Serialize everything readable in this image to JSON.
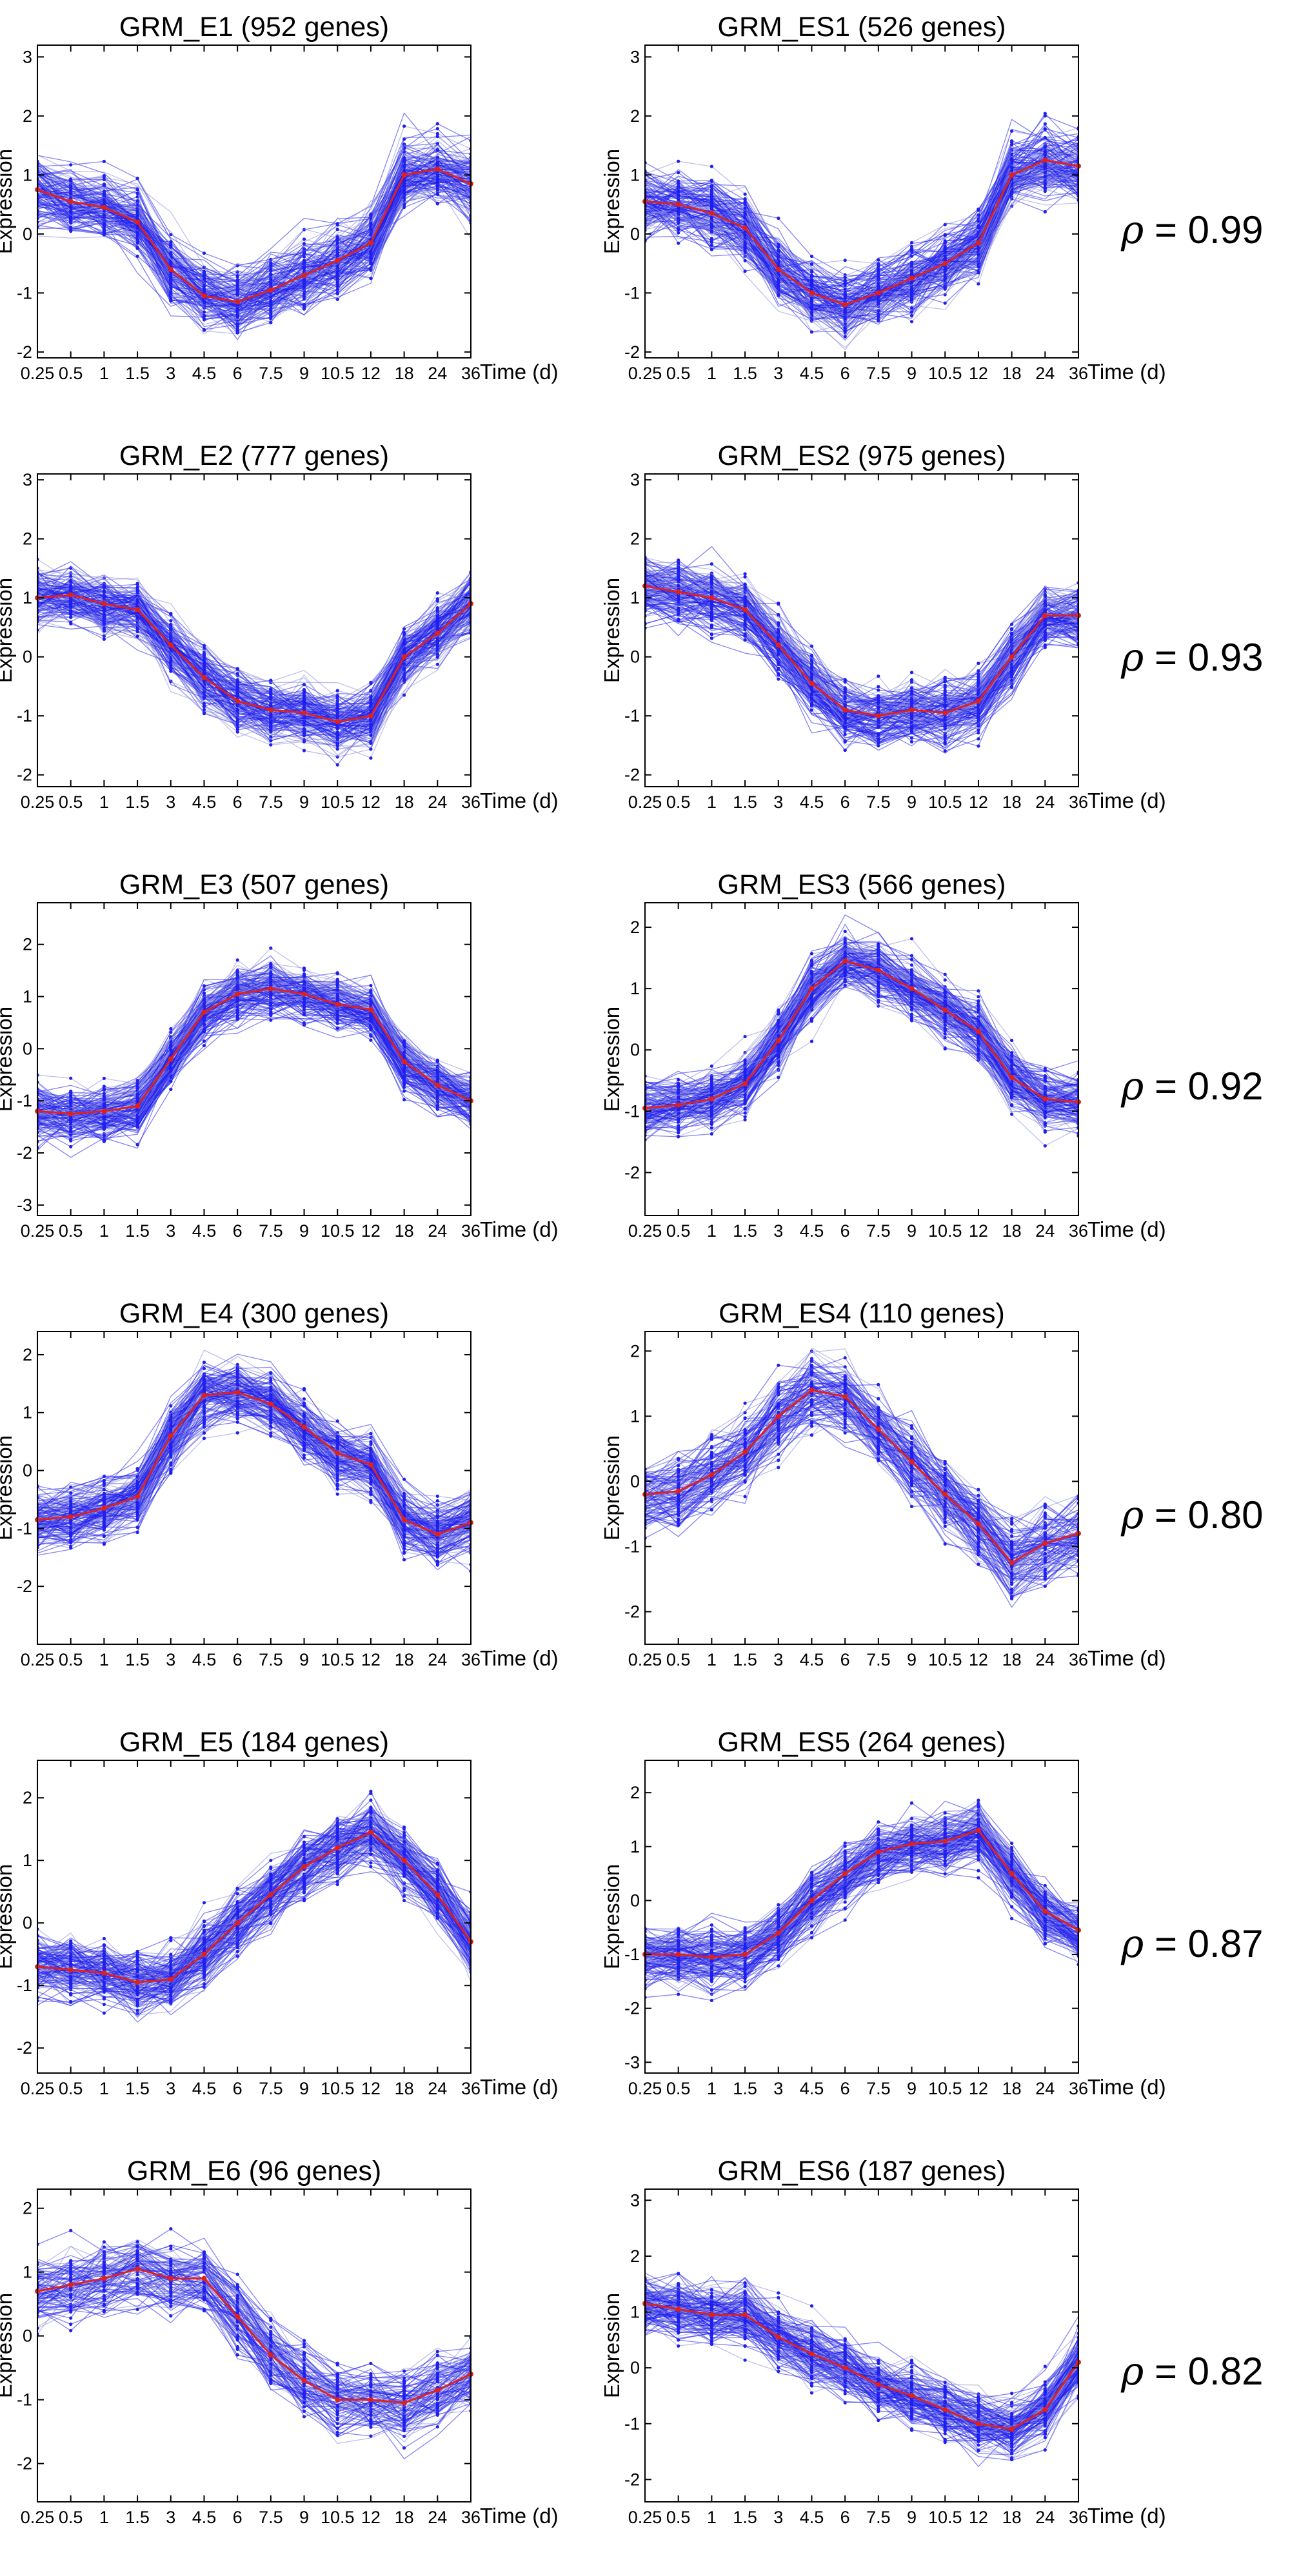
{
  "figure": {
    "rows": [
      {
        "rho_symbol": "ρ",
        "rho_value": "= 0.99"
      },
      {
        "rho_symbol": "ρ",
        "rho_value": "= 0.93"
      },
      {
        "rho_symbol": "ρ",
        "rho_value": "= 0.92"
      },
      {
        "rho_symbol": "ρ",
        "rho_value": "= 0.80"
      },
      {
        "rho_symbol": "ρ",
        "rho_value": "= 0.87"
      },
      {
        "rho_symbol": "ρ",
        "rho_value": "= 0.82"
      }
    ]
  },
  "colors": {
    "gene_lines": "#1f1ff0",
    "gene_lines_faint": "#8d8ddc",
    "mean_line": "#e0201c"
  },
  "chart_data": [
    {
      "type": "line",
      "title": "GRM_E1 (952 genes)",
      "n_genes": 952,
      "ylabel": "Expression",
      "xlabel": "Time (d)",
      "x": [
        "0.25",
        "0.5",
        "1",
        "1.5",
        "3",
        "4.5",
        "6",
        "7.5",
        "9",
        "10.5",
        "12",
        "18",
        "24",
        "36"
      ],
      "ylim": [
        -2.1,
        3.2
      ],
      "yticks": [
        -2,
        -1,
        0,
        1,
        2,
        3
      ],
      "spread": 0.5,
      "series": [
        {
          "values": [
            0.75,
            0.55,
            0.45,
            0.2,
            -0.6,
            -1.05,
            -1.15,
            -0.95,
            -0.7,
            -0.45,
            -0.15,
            1.0,
            1.1,
            0.85
          ]
        }
      ]
    },
    {
      "type": "line",
      "title": "GRM_ES1 (526 genes)",
      "n_genes": 526,
      "ylabel": "Expression",
      "xlabel": "Time (d)",
      "x": [
        "0.25",
        "0.5",
        "1",
        "1.5",
        "3",
        "4.5",
        "6",
        "7.5",
        "9",
        "10.5",
        "12",
        "18",
        "24",
        "36"
      ],
      "ylim": [
        -2.1,
        3.2
      ],
      "yticks": [
        -2,
        -1,
        0,
        1,
        2,
        3
      ],
      "spread": 0.5,
      "series": [
        {
          "values": [
            0.55,
            0.5,
            0.35,
            0.1,
            -0.6,
            -1.0,
            -1.2,
            -1.0,
            -0.75,
            -0.5,
            -0.15,
            1.0,
            1.25,
            1.15
          ]
        }
      ]
    },
    {
      "type": "line",
      "title": "GRM_E2 (777 genes)",
      "n_genes": 777,
      "ylabel": "Expression",
      "xlabel": "Time (d)",
      "x": [
        "0.25",
        "0.5",
        "1",
        "1.5",
        "3",
        "4.5",
        "6",
        "7.5",
        "9",
        "10.5",
        "12",
        "18",
        "24",
        "36"
      ],
      "ylim": [
        -2.2,
        3.1
      ],
      "yticks": [
        -2,
        -1,
        0,
        1,
        2,
        3
      ],
      "spread": 0.45,
      "series": [
        {
          "values": [
            1.0,
            1.05,
            0.9,
            0.8,
            0.2,
            -0.35,
            -0.75,
            -0.9,
            -0.95,
            -1.1,
            -1.0,
            0.0,
            0.4,
            0.9
          ]
        }
      ]
    },
    {
      "type": "line",
      "title": "GRM_ES2 (975 genes)",
      "n_genes": 975,
      "ylabel": "Expression",
      "xlabel": "Time (d)",
      "x": [
        "0.25",
        "0.5",
        "1",
        "1.5",
        "3",
        "4.5",
        "6",
        "7.5",
        "9",
        "10.5",
        "12",
        "18",
        "24",
        "36"
      ],
      "ylim": [
        -2.2,
        3.1
      ],
      "yticks": [
        -2,
        -1,
        0,
        1,
        2,
        3
      ],
      "spread": 0.45,
      "series": [
        {
          "values": [
            1.2,
            1.1,
            1.0,
            0.8,
            0.2,
            -0.45,
            -0.9,
            -1.0,
            -0.9,
            -0.95,
            -0.75,
            0.0,
            0.7,
            0.7
          ]
        }
      ]
    },
    {
      "type": "line",
      "title": "GRM_E3 (507 genes)",
      "n_genes": 507,
      "ylabel": "Expression",
      "xlabel": "Time (d)",
      "x": [
        "0.25",
        "0.5",
        "1",
        "1.5",
        "3",
        "4.5",
        "6",
        "7.5",
        "9",
        "10.5",
        "12",
        "18",
        "24",
        "36"
      ],
      "ylim": [
        -3.2,
        2.8
      ],
      "yticks": [
        -3,
        -2,
        -1,
        0,
        1,
        2
      ],
      "spread": 0.45,
      "series": [
        {
          "values": [
            -1.2,
            -1.25,
            -1.2,
            -1.1,
            -0.2,
            0.7,
            1.05,
            1.15,
            1.05,
            0.85,
            0.75,
            -0.25,
            -0.7,
            -1.0
          ]
        }
      ]
    },
    {
      "type": "line",
      "title": "GRM_ES3 (566 genes)",
      "n_genes": 566,
      "ylabel": "Expression",
      "xlabel": "Time (d)",
      "x": [
        "0.25",
        "0.5",
        "1",
        "1.5",
        "3",
        "4.5",
        "6",
        "7.5",
        "9",
        "10.5",
        "12",
        "18",
        "24",
        "36"
      ],
      "ylim": [
        -2.7,
        2.4
      ],
      "yticks": [
        -2,
        -1,
        0,
        1,
        2
      ],
      "spread": 0.4,
      "series": [
        {
          "values": [
            -0.95,
            -0.9,
            -0.8,
            -0.55,
            0.15,
            1.0,
            1.45,
            1.3,
            1.0,
            0.65,
            0.3,
            -0.45,
            -0.8,
            -0.85
          ]
        }
      ]
    },
    {
      "type": "line",
      "title": "GRM_E4 (300 genes)",
      "n_genes": 300,
      "ylabel": "Expression",
      "xlabel": "Time (d)",
      "x": [
        "0.25",
        "0.5",
        "1",
        "1.5",
        "3",
        "4.5",
        "6",
        "7.5",
        "9",
        "10.5",
        "12",
        "18",
        "24",
        "36"
      ],
      "ylim": [
        -3.0,
        2.4
      ],
      "yticks": [
        -2,
        -1,
        0,
        1,
        2
      ],
      "spread": 0.45,
      "series": [
        {
          "values": [
            -0.85,
            -0.8,
            -0.65,
            -0.45,
            0.6,
            1.3,
            1.35,
            1.15,
            0.75,
            0.3,
            0.1,
            -0.85,
            -1.1,
            -0.9
          ]
        }
      ]
    },
    {
      "type": "line",
      "title": "GRM_ES4 (110 genes)",
      "n_genes": 110,
      "ylabel": "Expression",
      "xlabel": "Time (d)",
      "x": [
        "0.25",
        "0.5",
        "1",
        "1.5",
        "3",
        "4.5",
        "6",
        "7.5",
        "9",
        "10.5",
        "12",
        "18",
        "24",
        "36"
      ],
      "ylim": [
        -2.5,
        2.3
      ],
      "yticks": [
        -2,
        -1,
        0,
        1,
        2
      ],
      "spread": 0.5,
      "series": [
        {
          "values": [
            -0.2,
            -0.15,
            0.1,
            0.45,
            1.0,
            1.4,
            1.3,
            0.8,
            0.3,
            -0.2,
            -0.65,
            -1.25,
            -0.95,
            -0.8
          ]
        }
      ]
    },
    {
      "type": "line",
      "title": "GRM_E5 (184 genes)",
      "n_genes": 184,
      "ylabel": "Expression",
      "xlabel": "Time (d)",
      "x": [
        "0.25",
        "0.5",
        "1",
        "1.5",
        "3",
        "4.5",
        "6",
        "7.5",
        "9",
        "10.5",
        "12",
        "18",
        "24",
        "36"
      ],
      "ylim": [
        -2.4,
        2.6
      ],
      "yticks": [
        -2,
        -1,
        0,
        1,
        2
      ],
      "spread": 0.45,
      "series": [
        {
          "values": [
            -0.7,
            -0.75,
            -0.8,
            -0.95,
            -0.9,
            -0.5,
            0.0,
            0.45,
            0.9,
            1.2,
            1.45,
            1.0,
            0.45,
            -0.3
          ]
        }
      ]
    },
    {
      "type": "line",
      "title": "GRM_ES5 (264 genes)",
      "n_genes": 264,
      "ylabel": "Expression",
      "xlabel": "Time (d)",
      "x": [
        "0.25",
        "0.5",
        "1",
        "1.5",
        "3",
        "4.5",
        "6",
        "7.5",
        "9",
        "10.5",
        "12",
        "18",
        "24",
        "36"
      ],
      "ylim": [
        -3.2,
        2.6
      ],
      "yticks": [
        -3,
        -2,
        -1,
        0,
        1,
        2
      ],
      "spread": 0.45,
      "series": [
        {
          "values": [
            -1.0,
            -1.0,
            -1.05,
            -1.0,
            -0.6,
            0.0,
            0.5,
            0.9,
            1.05,
            1.1,
            1.3,
            0.5,
            -0.2,
            -0.55
          ]
        }
      ]
    },
    {
      "type": "line",
      "title": "GRM_E6 (96 genes)",
      "n_genes": 96,
      "ylabel": "Expression",
      "xlabel": "Time (d)",
      "x": [
        "0.25",
        "0.5",
        "1",
        "1.5",
        "3",
        "4.5",
        "6",
        "7.5",
        "9",
        "10.5",
        "12",
        "18",
        "24",
        "36"
      ],
      "ylim": [
        -2.6,
        2.3
      ],
      "yticks": [
        -2,
        -1,
        0,
        1,
        2
      ],
      "spread": 0.45,
      "series": [
        {
          "values": [
            0.7,
            0.8,
            0.9,
            1.05,
            0.9,
            0.9,
            0.3,
            -0.3,
            -0.7,
            -1.0,
            -1.0,
            -1.05,
            -0.85,
            -0.6
          ]
        }
      ]
    },
    {
      "type": "line",
      "title": "GRM_ES6 (187 genes)",
      "n_genes": 187,
      "ylabel": "Expression",
      "xlabel": "Time (d)",
      "x": [
        "0.25",
        "0.5",
        "1",
        "1.5",
        "3",
        "4.5",
        "6",
        "7.5",
        "9",
        "10.5",
        "12",
        "18",
        "24",
        "36"
      ],
      "ylim": [
        -2.4,
        3.2
      ],
      "yticks": [
        -2,
        -1,
        0,
        1,
        2,
        3
      ],
      "spread": 0.45,
      "series": [
        {
          "values": [
            1.15,
            1.05,
            0.95,
            0.95,
            0.55,
            0.25,
            0.0,
            -0.3,
            -0.5,
            -0.75,
            -1.0,
            -1.1,
            -0.75,
            0.1
          ]
        }
      ]
    }
  ]
}
